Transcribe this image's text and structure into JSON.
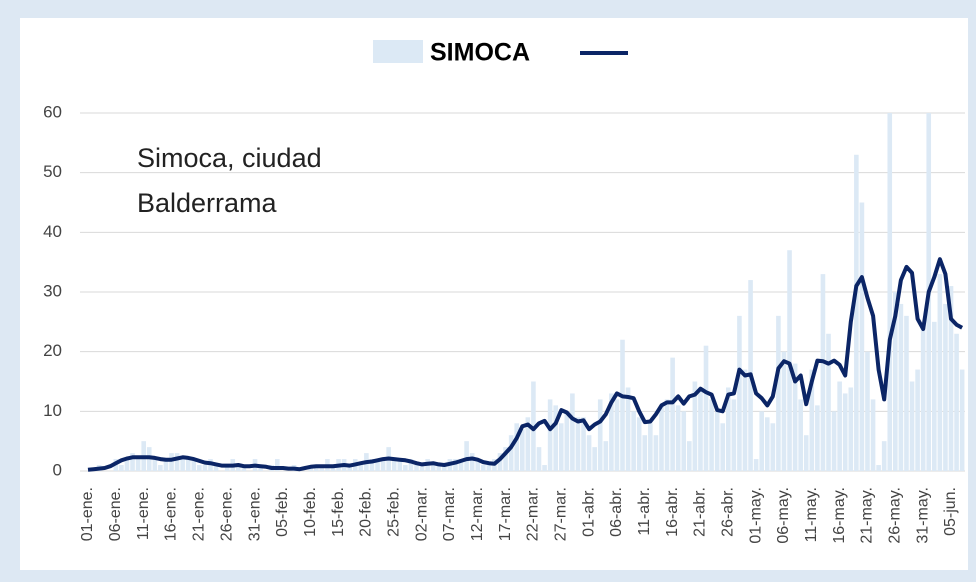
{
  "chart_data": {
    "type": "bar-line",
    "legend": "SIMOCA",
    "annotation": [
      "Simoca, ciudad",
      "Balderrama"
    ],
    "categories": [
      "01-ene.",
      null,
      null,
      null,
      null,
      "06-ene.",
      null,
      null,
      null,
      null,
      "11-ene.",
      null,
      null,
      null,
      null,
      "16-ene.",
      null,
      null,
      null,
      null,
      "21-ene.",
      null,
      null,
      null,
      null,
      "26-ene.",
      null,
      null,
      null,
      null,
      "31-ene.",
      null,
      null,
      null,
      null,
      "05-feb.",
      null,
      null,
      null,
      null,
      "10-feb.",
      null,
      null,
      null,
      null,
      "15-feb.",
      null,
      null,
      null,
      null,
      "20-feb.",
      null,
      null,
      null,
      null,
      "25-feb.",
      null,
      null,
      null,
      null,
      "02-mar.",
      null,
      null,
      null,
      null,
      "07-mar.",
      null,
      null,
      null,
      null,
      "12-mar.",
      null,
      null,
      null,
      null,
      "17-mar.",
      null,
      null,
      null,
      null,
      "22-mar.",
      null,
      null,
      null,
      null,
      "27-mar.",
      null,
      null,
      null,
      null,
      "01-abr.",
      null,
      null,
      null,
      null,
      "06-abr.",
      null,
      null,
      null,
      null,
      "11-abr.",
      null,
      null,
      null,
      null,
      "16-abr.",
      null,
      null,
      null,
      null,
      "21-abr.",
      null,
      null,
      null,
      null,
      "26-abr.",
      null,
      null,
      null,
      null,
      "01-may.",
      null,
      null,
      null,
      null,
      "06-may.",
      null,
      null,
      null,
      null,
      "11-may.",
      null,
      null,
      null,
      null,
      "16-may.",
      null,
      null,
      null,
      null,
      "21-may.",
      null,
      null,
      null,
      null,
      "26-may.",
      null,
      null,
      null,
      null,
      "31-may.",
      null,
      null,
      null,
      null,
      "05-jun.",
      null,
      null
    ],
    "series": [
      {
        "name": "SIMOCA",
        "kind": "bar",
        "color": "#dce9f5",
        "values": [
          0,
          0,
          1,
          0,
          0,
          2,
          1,
          2,
          3,
          2,
          5,
          4,
          2,
          1,
          2,
          3,
          3,
          2,
          2,
          2,
          1,
          1,
          2,
          1,
          0,
          1,
          2,
          1,
          1,
          0,
          2,
          1,
          0,
          1,
          2,
          0,
          0,
          1,
          0,
          0,
          1,
          1,
          1,
          2,
          1,
          2,
          2,
          1,
          2,
          1,
          3,
          2,
          2,
          2,
          4,
          2,
          2,
          1,
          2,
          1,
          1,
          2,
          1,
          1,
          1,
          2,
          2,
          2,
          5,
          3,
          2,
          1,
          1,
          2,
          3,
          4,
          6,
          8,
          7,
          9,
          15,
          4,
          1,
          12,
          11,
          8,
          10,
          13,
          9,
          9,
          6,
          4,
          12,
          5,
          13,
          12,
          22,
          14,
          10,
          9,
          6,
          8,
          6,
          11,
          12,
          19,
          11,
          10,
          5,
          15,
          14,
          21,
          12,
          10,
          8,
          14,
          12,
          26,
          17,
          32,
          2,
          10,
          9,
          8,
          26,
          20,
          37,
          18,
          12,
          6,
          17,
          11,
          33,
          23,
          10,
          15,
          13,
          14,
          53,
          45,
          20,
          12,
          1,
          5,
          60,
          30,
          28,
          26,
          15,
          17,
          24,
          60,
          25,
          33,
          28,
          31,
          23,
          17
        ]
      },
      {
        "kind": "line",
        "color": "#0b2566",
        "values": [
          0.2,
          0.3,
          0.4,
          0.5,
          0.8,
          1.3,
          1.8,
          2.1,
          2.3,
          2.3,
          2.3,
          2.3,
          2.2,
          2.0,
          1.9,
          1.9,
          2.1,
          2.3,
          2.2,
          2.0,
          1.7,
          1.4,
          1.3,
          1.1,
          0.9,
          0.9,
          0.9,
          1.0,
          0.8,
          0.8,
          0.9,
          0.8,
          0.7,
          0.5,
          0.5,
          0.5,
          0.4,
          0.4,
          0.3,
          0.5,
          0.7,
          0.8,
          0.8,
          0.8,
          0.8,
          0.9,
          1.0,
          0.9,
          1.1,
          1.3,
          1.5,
          1.6,
          1.8,
          2.0,
          2.1,
          2.0,
          1.9,
          1.8,
          1.6,
          1.3,
          1.1,
          1.2,
          1.3,
          1.1,
          1.0,
          1.2,
          1.4,
          1.7,
          2.0,
          2.1,
          1.9,
          1.5,
          1.3,
          1.2,
          2.0,
          3.0,
          4.0,
          5.5,
          7.5,
          7.8,
          7.0,
          8.0,
          8.4,
          7.0,
          8.0,
          10.2,
          9.8,
          8.8,
          8.3,
          8.5,
          7.0,
          7.8,
          8.3,
          9.5,
          11.5,
          13.0,
          12.5,
          12.4,
          12.2,
          10.0,
          8.2,
          8.3,
          9.5,
          11.0,
          11.5,
          11.5,
          12.5,
          11.3,
          12.5,
          12.8,
          13.8,
          13.2,
          12.8,
          10.2,
          10.0,
          12.8,
          13.0,
          17.0,
          16.0,
          16.2,
          13.0,
          12.2,
          11.0,
          12.5,
          17.2,
          18.4,
          18.0,
          15.0,
          16.0,
          11.2,
          15.0,
          18.5,
          18.4,
          18.0,
          18.5,
          17.8,
          16.0,
          25.0,
          31.0,
          32.5,
          29.0,
          26.0,
          17.0,
          12.0,
          22.0,
          26.0,
          32.0,
          34.2,
          33.2,
          25.5,
          23.8,
          30.0,
          32.5,
          35.5,
          33.0,
          25.5,
          24.5,
          24.0
        ]
      }
    ],
    "ylim": [
      0,
      60
    ],
    "yticks": [
      0,
      10,
      20,
      30,
      40,
      50,
      60
    ],
    "grid": true
  }
}
